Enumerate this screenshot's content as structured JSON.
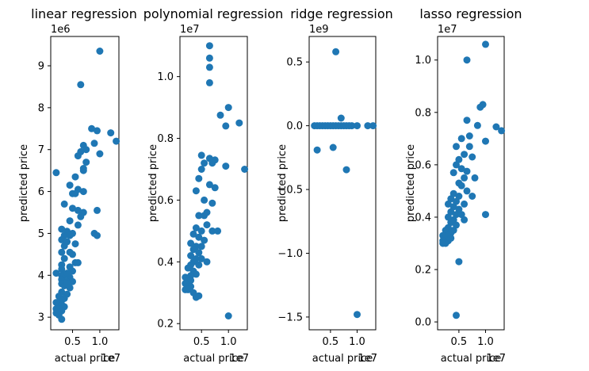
{
  "chart_data": [
    {
      "type": "scatter",
      "title": "linear regression",
      "xlabel": "actual price",
      "ylabel": "predicted price",
      "x_offset_label": "1e7",
      "y_offset_label": "1e6",
      "x_ticks": [
        0.5,
        1.0
      ],
      "y_ticks": [
        3,
        4,
        5,
        6,
        7,
        8,
        9
      ],
      "xlim": [
        0.1,
        1.35
      ],
      "ylim": [
        2.7,
        9.7
      ],
      "marker_color": "#1f77b4",
      "points": [
        [
          1.0,
          9.35
        ],
        [
          0.65,
          8.55
        ],
        [
          0.85,
          7.5
        ],
        [
          0.95,
          7.45
        ],
        [
          1.2,
          7.4
        ],
        [
          1.3,
          7.2
        ],
        [
          0.9,
          7.15
        ],
        [
          0.7,
          7.1
        ],
        [
          0.75,
          7.0
        ],
        [
          0.65,
          6.95
        ],
        [
          1.0,
          6.9
        ],
        [
          0.6,
          6.85
        ],
        [
          0.75,
          6.7
        ],
        [
          0.7,
          6.5
        ],
        [
          0.7,
          6.55
        ],
        [
          0.2,
          6.45
        ],
        [
          0.55,
          6.35
        ],
        [
          0.45,
          6.15
        ],
        [
          0.6,
          6.05
        ],
        [
          0.7,
          6.0
        ],
        [
          0.5,
          5.95
        ],
        [
          0.55,
          5.95
        ],
        [
          0.35,
          5.7
        ],
        [
          0.5,
          5.6
        ],
        [
          0.6,
          5.55
        ],
        [
          0.7,
          5.5
        ],
        [
          0.95,
          5.55
        ],
        [
          0.65,
          5.4
        ],
        [
          0.45,
          5.3
        ],
        [
          0.6,
          5.2
        ],
        [
          0.3,
          5.1
        ],
        [
          0.4,
          5.05
        ],
        [
          0.5,
          5.0
        ],
        [
          0.35,
          4.95
        ],
        [
          0.45,
          4.95
        ],
        [
          0.9,
          5.0
        ],
        [
          0.95,
          4.95
        ],
        [
          0.3,
          4.85
        ],
        [
          0.4,
          4.8
        ],
        [
          0.55,
          4.75
        ],
        [
          0.35,
          4.7
        ],
        [
          0.3,
          4.55
        ],
        [
          0.45,
          4.55
        ],
        [
          0.5,
          4.5
        ],
        [
          0.35,
          4.4
        ],
        [
          0.55,
          4.3
        ],
        [
          0.6,
          4.3
        ],
        [
          0.3,
          4.25
        ],
        [
          0.45,
          4.2
        ],
        [
          0.3,
          4.15
        ],
        [
          0.5,
          4.1
        ],
        [
          0.2,
          4.05
        ],
        [
          0.3,
          4.0
        ],
        [
          0.35,
          4.0
        ],
        [
          0.45,
          3.95
        ],
        [
          0.3,
          3.9
        ],
        [
          0.4,
          3.85
        ],
        [
          0.5,
          3.85
        ],
        [
          0.3,
          3.8
        ],
        [
          0.35,
          3.75
        ],
        [
          0.45,
          3.7
        ],
        [
          0.3,
          3.6
        ],
        [
          0.4,
          3.55
        ],
        [
          0.25,
          3.5
        ],
        [
          0.35,
          3.45
        ],
        [
          0.3,
          3.4
        ],
        [
          0.2,
          3.35
        ],
        [
          0.25,
          3.3
        ],
        [
          0.3,
          3.3
        ],
        [
          0.35,
          3.25
        ],
        [
          0.2,
          3.2
        ],
        [
          0.25,
          3.2
        ],
        [
          0.3,
          3.15
        ],
        [
          0.2,
          3.1
        ],
        [
          0.25,
          3.05
        ],
        [
          0.3,
          2.95
        ],
        [
          0.4,
          3.8
        ],
        [
          0.4,
          4.05
        ]
      ]
    },
    {
      "type": "scatter",
      "title": "polynomial regression",
      "xlabel": "actual price",
      "ylabel": "predicted price",
      "x_offset_label": "1e7",
      "y_offset_label": "1e7",
      "x_ticks": [
        0.5,
        1.0
      ],
      "y_ticks": [
        0.2,
        0.4,
        0.6,
        0.8,
        1.0
      ],
      "xlim": [
        0.1,
        1.35
      ],
      "ylim": [
        0.18,
        1.13
      ],
      "marker_color": "#1f77b4",
      "points": [
        [
          0.65,
          1.1
        ],
        [
          0.65,
          1.06
        ],
        [
          0.65,
          1.03
        ],
        [
          0.65,
          0.98
        ],
        [
          1.0,
          0.9
        ],
        [
          0.85,
          0.875
        ],
        [
          1.2,
          0.85
        ],
        [
          0.95,
          0.84
        ],
        [
          1.3,
          0.7
        ],
        [
          0.95,
          0.71
        ],
        [
          0.75,
          0.73
        ],
        [
          0.65,
          0.735
        ],
        [
          0.5,
          0.745
        ],
        [
          0.55,
          0.72
        ],
        [
          0.7,
          0.72
        ],
        [
          0.5,
          0.7
        ],
        [
          0.45,
          0.67
        ],
        [
          0.65,
          0.65
        ],
        [
          0.75,
          0.64
        ],
        [
          0.4,
          0.63
        ],
        [
          0.55,
          0.6
        ],
        [
          0.6,
          0.56
        ],
        [
          0.7,
          0.59
        ],
        [
          0.45,
          0.55
        ],
        [
          0.55,
          0.55
        ],
        [
          0.6,
          0.52
        ],
        [
          0.4,
          0.51
        ],
        [
          0.5,
          0.5
        ],
        [
          0.7,
          0.5
        ],
        [
          0.8,
          0.5
        ],
        [
          0.35,
          0.49
        ],
        [
          0.45,
          0.48
        ],
        [
          0.55,
          0.47
        ],
        [
          0.3,
          0.46
        ],
        [
          0.4,
          0.45
        ],
        [
          0.5,
          0.45
        ],
        [
          0.35,
          0.44
        ],
        [
          0.45,
          0.43
        ],
        [
          0.3,
          0.42
        ],
        [
          0.4,
          0.41
        ],
        [
          0.5,
          0.41
        ],
        [
          0.35,
          0.4
        ],
        [
          0.6,
          0.4
        ],
        [
          0.3,
          0.39
        ],
        [
          0.45,
          0.39
        ],
        [
          0.25,
          0.38
        ],
        [
          0.35,
          0.37
        ],
        [
          0.4,
          0.36
        ],
        [
          0.3,
          0.355
        ],
        [
          0.2,
          0.35
        ],
        [
          0.25,
          0.34
        ],
        [
          0.3,
          0.34
        ],
        [
          0.2,
          0.33
        ],
        [
          0.25,
          0.32
        ],
        [
          0.3,
          0.32
        ],
        [
          0.2,
          0.31
        ],
        [
          0.25,
          0.31
        ],
        [
          0.4,
          0.285
        ],
        [
          1.0,
          0.225
        ],
        [
          0.45,
          0.29
        ],
        [
          0.35,
          0.3
        ]
      ]
    },
    {
      "type": "scatter",
      "title": "ridge regression",
      "xlabel": "actual price",
      "ylabel": "predicted price",
      "x_offset_label": "1e7",
      "y_offset_label": "1e9",
      "x_ticks": [
        0.5,
        1.0
      ],
      "y_ticks": [
        -1.5,
        -1.0,
        -0.5,
        0.0,
        0.5
      ],
      "xlim": [
        0.1,
        1.35
      ],
      "ylim": [
        -1.6,
        0.7
      ],
      "marker_color": "#1f77b4",
      "points": [
        [
          0.6,
          0.58
        ],
        [
          0.7,
          0.06
        ],
        [
          0.2,
          0.0
        ],
        [
          0.25,
          0.0
        ],
        [
          0.3,
          0.0
        ],
        [
          0.35,
          0.0
        ],
        [
          0.4,
          0.0
        ],
        [
          0.45,
          0.0
        ],
        [
          0.5,
          0.0
        ],
        [
          0.55,
          0.0
        ],
        [
          0.6,
          0.0
        ],
        [
          0.65,
          0.0
        ],
        [
          0.7,
          0.0
        ],
        [
          0.75,
          0.0
        ],
        [
          0.8,
          0.0
        ],
        [
          0.85,
          0.0
        ],
        [
          0.9,
          0.0
        ],
        [
          1.0,
          0.0
        ],
        [
          1.2,
          0.0
        ],
        [
          1.3,
          0.0
        ],
        [
          0.25,
          -0.19
        ],
        [
          0.55,
          -0.17
        ],
        [
          0.8,
          -0.345
        ],
        [
          1.0,
          -1.48
        ]
      ]
    },
    {
      "type": "scatter",
      "title": "lasso regression",
      "xlabel": "actual price",
      "ylabel": "predicted price",
      "x_offset_label": "1e7",
      "y_offset_label": "1e7",
      "x_ticks": [
        0.5,
        1.0
      ],
      "y_ticks": [
        0.0,
        0.2,
        0.4,
        0.6,
        0.8,
        1.0
      ],
      "xlim": [
        0.1,
        1.35
      ],
      "ylim": [
        -0.03,
        1.09
      ],
      "marker_color": "#1f77b4",
      "points": [
        [
          1.0,
          1.06
        ],
        [
          0.65,
          1.0
        ],
        [
          0.95,
          0.83
        ],
        [
          0.9,
          0.82
        ],
        [
          0.65,
          0.77
        ],
        [
          0.85,
          0.75
        ],
        [
          1.2,
          0.745
        ],
        [
          1.3,
          0.73
        ],
        [
          0.7,
          0.71
        ],
        [
          1.0,
          0.69
        ],
        [
          0.55,
          0.7
        ],
        [
          0.45,
          0.67
        ],
        [
          0.7,
          0.67
        ],
        [
          0.6,
          0.64
        ],
        [
          0.75,
          0.63
        ],
        [
          0.5,
          0.62
        ],
        [
          0.45,
          0.6
        ],
        [
          0.55,
          0.585
        ],
        [
          0.65,
          0.575
        ],
        [
          0.4,
          0.57
        ],
        [
          0.6,
          0.55
        ],
        [
          0.8,
          0.55
        ],
        [
          0.5,
          0.53
        ],
        [
          0.55,
          0.52
        ],
        [
          0.65,
          0.5
        ],
        [
          0.4,
          0.49
        ],
        [
          0.5,
          0.48
        ],
        [
          0.75,
          0.48
        ],
        [
          0.35,
          0.47
        ],
        [
          0.45,
          0.46
        ],
        [
          0.6,
          0.45
        ],
        [
          0.3,
          0.45
        ],
        [
          0.4,
          0.44
        ],
        [
          0.5,
          0.43
        ],
        [
          0.35,
          0.42
        ],
        [
          0.45,
          0.41
        ],
        [
          0.55,
          0.41
        ],
        [
          1.0,
          0.41
        ],
        [
          0.3,
          0.4
        ],
        [
          0.4,
          0.39
        ],
        [
          0.6,
          0.39
        ],
        [
          0.35,
          0.38
        ],
        [
          0.45,
          0.37
        ],
        [
          0.3,
          0.36
        ],
        [
          0.4,
          0.35
        ],
        [
          0.25,
          0.35
        ],
        [
          0.35,
          0.34
        ],
        [
          0.2,
          0.33
        ],
        [
          0.3,
          0.33
        ],
        [
          0.25,
          0.32
        ],
        [
          0.35,
          0.32
        ],
        [
          0.2,
          0.31
        ],
        [
          0.3,
          0.31
        ],
        [
          0.25,
          0.3
        ],
        [
          0.2,
          0.3
        ],
        [
          0.5,
          0.23
        ],
        [
          0.45,
          0.025
        ]
      ]
    }
  ]
}
